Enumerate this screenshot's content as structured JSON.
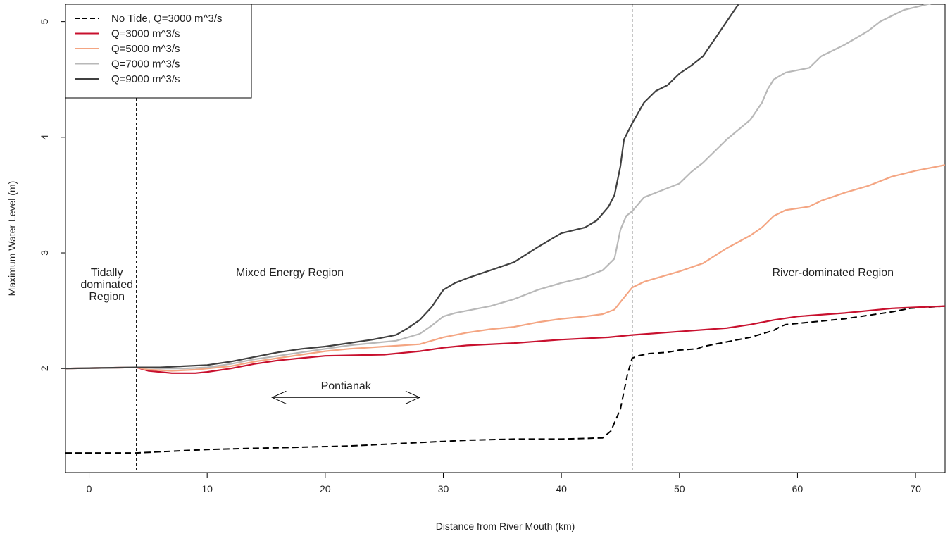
{
  "chart_data": {
    "type": "line",
    "title": "",
    "xlabel": "Distance from River Mouth (km)",
    "ylabel": "Maximum Water Level (m)",
    "xlim": [
      -2,
      72.5
    ],
    "ylim": [
      1.1,
      5.15
    ],
    "x_ticks": [
      0,
      10,
      20,
      30,
      40,
      50,
      60,
      70
    ],
    "y_ticks": [
      2,
      3,
      4,
      5
    ],
    "grid": false,
    "legend_position": "top-left",
    "series": [
      {
        "name": "No Tide, Q=3000 m^3/s",
        "color": "#000000",
        "dash": "dashed",
        "points": [
          [
            -2,
            1.27
          ],
          [
            2,
            1.27
          ],
          [
            4,
            1.27
          ],
          [
            6,
            1.28
          ],
          [
            8,
            1.29
          ],
          [
            10,
            1.3
          ],
          [
            14,
            1.31
          ],
          [
            18,
            1.32
          ],
          [
            22,
            1.33
          ],
          [
            24,
            1.34
          ],
          [
            26,
            1.35
          ],
          [
            28,
            1.36
          ],
          [
            30,
            1.37
          ],
          [
            32,
            1.38
          ],
          [
            36,
            1.39
          ],
          [
            40,
            1.39
          ],
          [
            43.5,
            1.4
          ],
          [
            44.2,
            1.46
          ],
          [
            45,
            1.65
          ],
          [
            45.6,
            1.95
          ],
          [
            46,
            2.09
          ],
          [
            46.5,
            2.11
          ],
          [
            47.5,
            2.13
          ],
          [
            49,
            2.14
          ],
          [
            50,
            2.16
          ],
          [
            51.5,
            2.17
          ],
          [
            52,
            2.19
          ],
          [
            53,
            2.21
          ],
          [
            54,
            2.23
          ],
          [
            55,
            2.25
          ],
          [
            56,
            2.27
          ],
          [
            57,
            2.3
          ],
          [
            58,
            2.33
          ],
          [
            58.5,
            2.36
          ],
          [
            59,
            2.38
          ],
          [
            60,
            2.39
          ],
          [
            62,
            2.41
          ],
          [
            64,
            2.43
          ],
          [
            66,
            2.46
          ],
          [
            68,
            2.49
          ],
          [
            69.5,
            2.52
          ],
          [
            71,
            2.53
          ],
          [
            72.5,
            2.54
          ]
        ]
      },
      {
        "name": "Q=3000 m^3/s",
        "color": "#c8102e",
        "dash": "solid",
        "points": [
          [
            -2,
            2.0
          ],
          [
            4,
            2.01
          ],
          [
            5,
            1.98
          ],
          [
            6,
            1.97
          ],
          [
            7,
            1.96
          ],
          [
            9,
            1.96
          ],
          [
            10,
            1.97
          ],
          [
            12,
            2.0
          ],
          [
            14,
            2.04
          ],
          [
            16,
            2.07
          ],
          [
            18,
            2.09
          ],
          [
            20,
            2.11
          ],
          [
            25,
            2.12
          ],
          [
            28,
            2.15
          ],
          [
            30,
            2.18
          ],
          [
            32,
            2.2
          ],
          [
            36,
            2.22
          ],
          [
            40,
            2.25
          ],
          [
            44,
            2.27
          ],
          [
            46,
            2.29
          ],
          [
            50,
            2.32
          ],
          [
            54,
            2.35
          ],
          [
            56,
            2.38
          ],
          [
            58,
            2.42
          ],
          [
            60,
            2.45
          ],
          [
            64,
            2.48
          ],
          [
            68,
            2.52
          ],
          [
            72.5,
            2.54
          ]
        ]
      },
      {
        "name": "Q=5000 m^3/s",
        "color": "#f4a582",
        "dash": "solid",
        "points": [
          [
            -2,
            2.0
          ],
          [
            4,
            2.01
          ],
          [
            5,
            1.99
          ],
          [
            7,
            1.98
          ],
          [
            9,
            1.99
          ],
          [
            12,
            2.02
          ],
          [
            14,
            2.06
          ],
          [
            16,
            2.09
          ],
          [
            18,
            2.12
          ],
          [
            20,
            2.15
          ],
          [
            22,
            2.17
          ],
          [
            25,
            2.19
          ],
          [
            28,
            2.21
          ],
          [
            30,
            2.27
          ],
          [
            32,
            2.31
          ],
          [
            34,
            2.34
          ],
          [
            36,
            2.36
          ],
          [
            38,
            2.4
          ],
          [
            40,
            2.43
          ],
          [
            42,
            2.45
          ],
          [
            43.5,
            2.47
          ],
          [
            44.5,
            2.51
          ],
          [
            45.2,
            2.6
          ],
          [
            46,
            2.7
          ],
          [
            47,
            2.75
          ],
          [
            48,
            2.78
          ],
          [
            50,
            2.84
          ],
          [
            52,
            2.91
          ],
          [
            54,
            3.04
          ],
          [
            56,
            3.15
          ],
          [
            57,
            3.22
          ],
          [
            58,
            3.32
          ],
          [
            59,
            3.37
          ],
          [
            61,
            3.4
          ],
          [
            62,
            3.45
          ],
          [
            64,
            3.52
          ],
          [
            66,
            3.58
          ],
          [
            68,
            3.66
          ],
          [
            70,
            3.71
          ],
          [
            72.5,
            3.76
          ]
        ]
      },
      {
        "name": "Q=7000 m^3/s",
        "color": "#b8b8b8",
        "dash": "solid",
        "points": [
          [
            -2,
            2.0
          ],
          [
            4,
            2.01
          ],
          [
            6,
            2.0
          ],
          [
            8,
            2.0
          ],
          [
            10,
            2.01
          ],
          [
            12,
            2.04
          ],
          [
            14,
            2.08
          ],
          [
            16,
            2.11
          ],
          [
            18,
            2.14
          ],
          [
            20,
            2.17
          ],
          [
            22,
            2.2
          ],
          [
            24,
            2.22
          ],
          [
            26,
            2.24
          ],
          [
            28,
            2.3
          ],
          [
            29,
            2.37
          ],
          [
            30,
            2.45
          ],
          [
            31,
            2.48
          ],
          [
            34,
            2.54
          ],
          [
            36,
            2.6
          ],
          [
            38,
            2.68
          ],
          [
            40,
            2.74
          ],
          [
            42,
            2.79
          ],
          [
            43.5,
            2.85
          ],
          [
            44.5,
            2.95
          ],
          [
            45,
            3.2
          ],
          [
            45.5,
            3.32
          ],
          [
            46,
            3.36
          ],
          [
            47,
            3.48
          ],
          [
            48,
            3.52
          ],
          [
            50,
            3.6
          ],
          [
            51,
            3.7
          ],
          [
            52,
            3.78
          ],
          [
            53,
            3.88
          ],
          [
            54,
            3.98
          ],
          [
            56,
            4.15
          ],
          [
            57,
            4.3
          ],
          [
            57.5,
            4.42
          ],
          [
            58,
            4.5
          ],
          [
            59,
            4.56
          ],
          [
            61,
            4.6
          ],
          [
            62,
            4.7
          ],
          [
            64,
            4.8
          ],
          [
            66,
            4.92
          ],
          [
            67,
            5.0
          ],
          [
            69,
            5.1
          ],
          [
            71,
            5.15
          ],
          [
            72.5,
            5.18
          ]
        ]
      },
      {
        "name": "Q=9000 m^3/s",
        "color": "#404040",
        "dash": "solid",
        "points": [
          [
            -2,
            2.0
          ],
          [
            4,
            2.01
          ],
          [
            6,
            2.01
          ],
          [
            8,
            2.02
          ],
          [
            10,
            2.03
          ],
          [
            12,
            2.06
          ],
          [
            14,
            2.1
          ],
          [
            16,
            2.14
          ],
          [
            18,
            2.17
          ],
          [
            20,
            2.19
          ],
          [
            22,
            2.22
          ],
          [
            24,
            2.25
          ],
          [
            26,
            2.29
          ],
          [
            27,
            2.35
          ],
          [
            28,
            2.42
          ],
          [
            29,
            2.53
          ],
          [
            30,
            2.68
          ],
          [
            31,
            2.74
          ],
          [
            32,
            2.78
          ],
          [
            34,
            2.85
          ],
          [
            36,
            2.92
          ],
          [
            38,
            3.05
          ],
          [
            40,
            3.17
          ],
          [
            42,
            3.22
          ],
          [
            43,
            3.28
          ],
          [
            44,
            3.4
          ],
          [
            44.5,
            3.5
          ],
          [
            45,
            3.75
          ],
          [
            45.3,
            3.98
          ],
          [
            46,
            4.12
          ],
          [
            47,
            4.3
          ],
          [
            48,
            4.4
          ],
          [
            49,
            4.45
          ],
          [
            50,
            4.55
          ],
          [
            51,
            4.62
          ],
          [
            52,
            4.7
          ],
          [
            53,
            4.85
          ],
          [
            54,
            5.0
          ],
          [
            55,
            5.15
          ],
          [
            56,
            5.25
          ]
        ]
      }
    ],
    "boundaries_km": [
      4,
      46
    ],
    "region_labels": [
      {
        "lines": [
          "Tidally",
          "dominated",
          "Region"
        ],
        "x": 1.5,
        "y": 2.8
      },
      {
        "lines": [
          "Mixed Energy Region"
        ],
        "x": 17,
        "y": 2.8
      },
      {
        "lines": [
          "River-dominated Region"
        ],
        "x": 63,
        "y": 2.8
      }
    ],
    "annotation": {
      "text": "Pontianak",
      "x_start": 15.5,
      "x_end": 28,
      "arrow_y": 1.75,
      "text_y": 1.85
    }
  }
}
